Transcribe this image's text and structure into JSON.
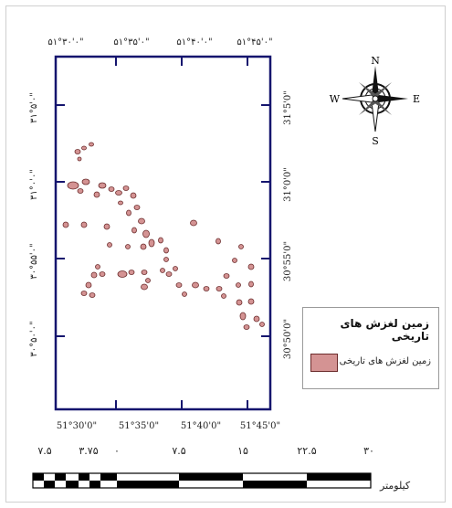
{
  "map": {
    "top_lon_labels": [
      "۵۱°۳۰'۰\"",
      "۵۱°۳۵'۰\"",
      "۵۱°۴۰'۰\"",
      "۵۱°۴۵'۰\""
    ],
    "bottom_lon_labels": [
      "51°30'0\"",
      "51°35'0\"",
      "51°40'0\"",
      "51°45'0\""
    ],
    "left_lat_labels": [
      "۳۱°۵'۰\"",
      "۳۱°۰'۰\"",
      "۳۰°۵۵'۰\"",
      "۳۰°۵۰'۰\""
    ],
    "right_lat_labels": [
      "31°5'0\"",
      "31°0'0\"",
      "30°55'0\"",
      "30°50'0\""
    ],
    "landslide_fill": "#d49393",
    "landslide_stroke": "#6b2b2b",
    "frame_color": "#15156e"
  },
  "north_arrow": {
    "n": "N",
    "s": "S",
    "e": "E",
    "w": "W"
  },
  "legend": {
    "title": "زمین لغزش های تاریخی",
    "item_label": "زمین لغزش های تاریخی"
  },
  "scale_bar": {
    "labels": [
      "۷.۵",
      "۳.۷۵",
      "۰",
      "۷.۵",
      "۱۵",
      "۲۲.۵",
      "۳۰"
    ],
    "unit": "کیلومتر"
  }
}
